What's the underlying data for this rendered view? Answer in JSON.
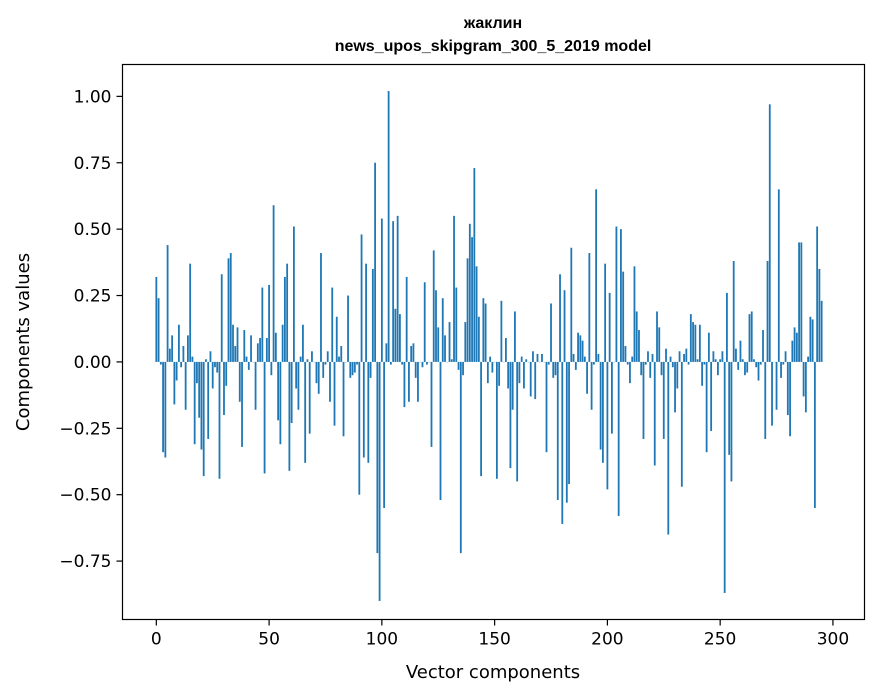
{
  "chart_data": {
    "type": "bar",
    "title": "жаклин",
    "subtitle": "news_upos_skipgram_300_5_2019 model",
    "xlabel": "Vector components",
    "ylabel": "Components values",
    "xlim": [
      -15,
      314
    ],
    "ylim": [
      -0.97,
      1.12
    ],
    "xticks": [
      0,
      50,
      100,
      150,
      200,
      250,
      300
    ],
    "xtick_labels": [
      "0",
      "50",
      "100",
      "150",
      "200",
      "250",
      "300"
    ],
    "yticks": [
      -0.75,
      -0.5,
      -0.25,
      0.0,
      0.25,
      0.5,
      0.75,
      1.0
    ],
    "ytick_labels": [
      "−0.75",
      "−0.50",
      "−0.25",
      "0.00",
      "0.25",
      "0.50",
      "0.75",
      "1.00"
    ],
    "bar_color": "#1f77b4",
    "x": "0..299 (component index)",
    "values": [
      0.32,
      0.24,
      -0.01,
      -0.34,
      -0.36,
      0.44,
      0.05,
      0.1,
      -0.16,
      -0.07,
      0.14,
      -0.02,
      0.06,
      -0.18,
      0.1,
      0.37,
      0.02,
      -0.31,
      -0.08,
      -0.21,
      -0.33,
      -0.43,
      0.01,
      -0.29,
      0.04,
      -0.1,
      -0.02,
      -0.04,
      -0.44,
      0.33,
      -0.2,
      -0.09,
      0.39,
      0.41,
      0.14,
      0.06,
      0.13,
      -0.15,
      -0.32,
      0.12,
      0.02,
      -0.03,
      0.1,
      0.0,
      -0.18,
      0.07,
      0.09,
      0.28,
      -0.42,
      0.09,
      0.29,
      -0.05,
      0.59,
      0.11,
      -0.22,
      -0.31,
      0.14,
      0.32,
      0.37,
      -0.41,
      -0.23,
      0.51,
      -0.1,
      -0.18,
      0.02,
      0.14,
      -0.38,
      0.01,
      -0.27,
      0.04,
      0.0,
      -0.08,
      -0.12,
      0.41,
      -0.06,
      -0.01,
      0.04,
      -0.15,
      0.28,
      -0.24,
      0.17,
      0.02,
      0.06,
      -0.28,
      0.0,
      0.25,
      -0.06,
      -0.05,
      -0.04,
      -0.01,
      -0.5,
      0.48,
      -0.36,
      0.37,
      -0.38,
      -0.06,
      0.35,
      0.75,
      -0.72,
      -0.9,
      0.54,
      -0.55,
      0.07,
      1.02,
      -0.01,
      0.53,
      0.2,
      0.55,
      0.18,
      -0.01,
      -0.17,
      0.32,
      -0.15,
      0.06,
      0.07,
      -0.06,
      -0.15,
      0.0,
      -0.02,
      0.3,
      -0.01,
      0.0,
      -0.32,
      0.42,
      0.27,
      0.13,
      -0.52,
      0.24,
      0.1,
      0.0,
      0.15,
      0.01,
      0.55,
      0.28,
      -0.03,
      -0.72,
      -0.05,
      0.15,
      0.39,
      0.52,
      0.47,
      0.73,
      0.36,
      0.17,
      -0.43,
      0.24,
      0.22,
      -0.08,
      0.02,
      -0.04,
      0.0,
      -0.44,
      -0.09,
      0.23,
      0.0,
      0.09,
      -0.1,
      -0.4,
      -0.18,
      0.19,
      -0.45,
      -0.08,
      0.02,
      -0.1,
      0.01,
      0.0,
      -0.13,
      0.04,
      -0.14,
      0.03,
      0.0,
      0.03,
      0.0,
      -0.34,
      -0.01,
      0.22,
      -0.06,
      -0.05,
      -0.52,
      0.33,
      -0.61,
      0.27,
      -0.53,
      -0.46,
      0.43,
      0.03,
      -0.03,
      0.11,
      0.1,
      0.08,
      0.02,
      -0.12,
      0.41,
      -0.18,
      -0.01,
      0.65,
      0.03,
      -0.33,
      -0.38,
      0.37,
      -0.48,
      0.26,
      -0.27,
      0.0,
      0.51,
      -0.58,
      0.5,
      0.34,
      0.06,
      -0.01,
      -0.08,
      0.02,
      0.36,
      0.19,
      0.12,
      -0.05,
      -0.29,
      -0.01,
      0.04,
      -0.06,
      0.03,
      -0.39,
      0.19,
      0.13,
      -0.05,
      -0.29,
      0.05,
      -0.65,
      0.02,
      -0.02,
      -0.19,
      -0.1,
      0.04,
      -0.47,
      0.03,
      0.05,
      -0.01,
      0.18,
      0.15,
      0.14,
      0.01,
      0.14,
      -0.09,
      -0.01,
      -0.34,
      0.11,
      -0.26,
      0.04,
      0.01,
      -0.05,
      0.01,
      0.04,
      -0.87,
      0.26,
      -0.35,
      -0.45,
      0.38,
      0.05,
      -0.03,
      0.08,
      0.01,
      -0.05,
      -0.04,
      0.18,
      0.19,
      0.01,
      -0.02,
      -0.07,
      -0.01,
      0.12,
      -0.29,
      0.38,
      0.97,
      -0.24,
      0.0,
      -0.18,
      0.65,
      -0.06,
      -0.01,
      0.04,
      -0.2,
      -0.28,
      0.08,
      0.13,
      0.11,
      0.45,
      0.45,
      -0.13,
      -0.19,
      0.02,
      0.17,
      0.16,
      -0.55,
      0.51,
      0.35,
      0.23
    ]
  }
}
